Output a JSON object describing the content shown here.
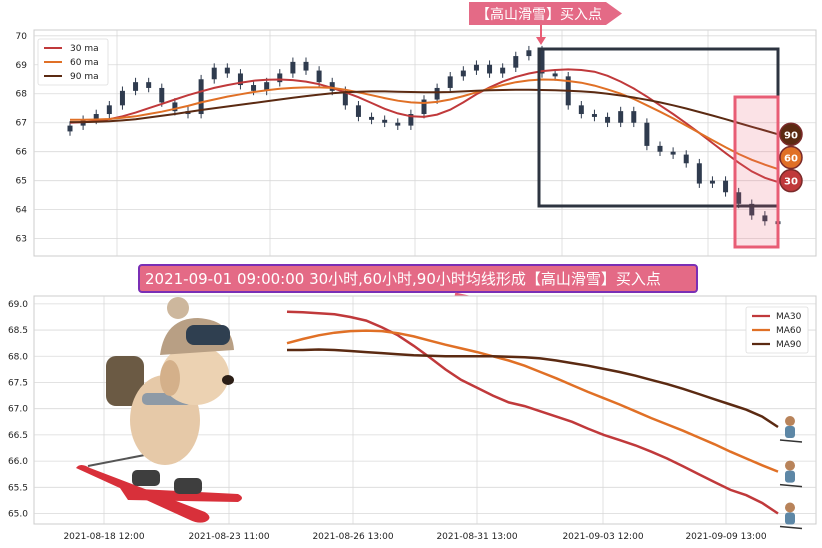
{
  "colors": {
    "ma30": "#c0393b",
    "ma60": "#e07026",
    "ma90": "#5b2a12",
    "candle": "#2f3b4e",
    "grid": "#d9d9d9",
    "highlight_box": "#2d3440",
    "alert_pink": "#e85d75",
    "banner_bg": "#e46a86",
    "banner_border": "#7a2fb5"
  },
  "top_banner": {
    "text": "【高山滑雪】买入点",
    "icon": "arrow-right-banner"
  },
  "mid_banner": {
    "text": "2021-09-01 09:00:00 30小时,60小时,90小时均线形成【高山滑雪】买入点"
  },
  "chart_data": [
    {
      "type": "candlestick",
      "ylim": [
        62.4,
        70.2
      ],
      "yticks": [
        "63",
        "64",
        "65",
        "66",
        "67",
        "68",
        "69",
        "70"
      ],
      "grid": true,
      "legend_position": "top-left",
      "legend": [
        "30 ma",
        "60 ma",
        "90 ma"
      ],
      "series": [
        {
          "name": "30 ma",
          "values": [
            67.0,
            67.02,
            67.05,
            67.12,
            67.22,
            67.35,
            67.5,
            67.65,
            67.8,
            67.95,
            68.08,
            68.2,
            68.3,
            68.38,
            68.45,
            68.48,
            68.49,
            68.47,
            68.42,
            68.33,
            68.2,
            68.05,
            67.88,
            67.68,
            67.48,
            67.32,
            67.22,
            67.2,
            67.28,
            67.45,
            67.7,
            67.98,
            68.22,
            68.42,
            68.58,
            68.7,
            68.78,
            68.82,
            68.84,
            68.82,
            68.76,
            68.62,
            68.42,
            68.18,
            67.9,
            67.6,
            67.3,
            66.98,
            66.65,
            66.3,
            65.95,
            65.62,
            65.32,
            65.1,
            64.95
          ]
        },
        {
          "name": "60 ma",
          "values": [
            67.1,
            67.1,
            67.11,
            67.13,
            67.17,
            67.22,
            67.3,
            67.38,
            67.48,
            67.58,
            67.7,
            67.8,
            67.9,
            67.98,
            68.06,
            68.12,
            68.17,
            68.2,
            68.22,
            68.22,
            68.2,
            68.14,
            68.05,
            67.95,
            67.85,
            67.76,
            67.7,
            67.68,
            67.72,
            67.8,
            67.92,
            68.05,
            68.18,
            68.3,
            68.4,
            68.46,
            68.49,
            68.48,
            68.44,
            68.38,
            68.28,
            68.15,
            68.0,
            67.82,
            67.6,
            67.38,
            67.15,
            66.9,
            66.65,
            66.4,
            66.15,
            65.92,
            65.72,
            65.55,
            65.4
          ]
        },
        {
          "name": "90 ma",
          "values": [
            67.02,
            67.02,
            67.03,
            67.05,
            67.08,
            67.12,
            67.18,
            67.24,
            67.3,
            67.37,
            67.44,
            67.5,
            67.56,
            67.62,
            67.68,
            67.74,
            67.8,
            67.86,
            67.92,
            67.97,
            68.02,
            68.05,
            68.07,
            68.08,
            68.08,
            68.07,
            68.06,
            68.05,
            68.05,
            68.06,
            68.08,
            68.1,
            68.12,
            68.13,
            68.14,
            68.14,
            68.13,
            68.12,
            68.1,
            68.08,
            68.05,
            68.0,
            67.94,
            67.87,
            67.79,
            67.7,
            67.6,
            67.49,
            67.37,
            67.25,
            67.12,
            66.99,
            66.86,
            66.73,
            66.6
          ]
        }
      ],
      "candles_close": [
        66.9,
        67.1,
        67.3,
        67.6,
        68.1,
        68.4,
        68.2,
        67.7,
        67.4,
        67.3,
        68.5,
        68.9,
        68.7,
        68.3,
        68.1,
        68.4,
        68.7,
        69.1,
        68.8,
        68.4,
        68.1,
        67.6,
        67.2,
        67.1,
        67.0,
        66.9,
        67.3,
        67.8,
        68.2,
        68.6,
        68.8,
        69.0,
        68.7,
        68.9,
        69.3,
        69.5,
        68.7,
        68.6,
        67.6,
        67.3,
        67.2,
        67.0,
        67.4,
        67.0,
        66.2,
        66.0,
        65.9,
        65.6,
        64.9,
        65.0,
        64.6,
        64.2,
        63.8,
        63.6,
        63.5
      ],
      "value_badges": [
        "90",
        "60",
        "30"
      ],
      "badge_values": [
        66.6,
        65.8,
        65.0
      ]
    },
    {
      "type": "line",
      "ylim": [
        64.8,
        69.15
      ],
      "yticks": [
        "65.0",
        "65.5",
        "66.0",
        "66.5",
        "67.0",
        "67.5",
        "68.0",
        "68.5",
        "69.0"
      ],
      "grid": true,
      "legend_position": "top-right",
      "legend": [
        "MA30",
        "MA60",
        "MA90"
      ],
      "xticks": [
        "2021-08-18 12:00",
        "2021-08-23 11:00",
        "2021-08-26 13:00",
        "2021-08-31 13:00",
        "2021-09-03 12:00",
        "2021-09-09 13:00"
      ],
      "series": [
        {
          "name": "MA30",
          "values": [
            68.85,
            68.84,
            68.82,
            68.8,
            68.75,
            68.68,
            68.55,
            68.4,
            68.2,
            67.98,
            67.75,
            67.55,
            67.4,
            67.25,
            67.12,
            67.05,
            66.95,
            66.85,
            66.75,
            66.62,
            66.5,
            66.4,
            66.3,
            66.18,
            66.05,
            65.9,
            65.75,
            65.6,
            65.45,
            65.35,
            65.2,
            65.0
          ]
        },
        {
          "name": "MA60",
          "values": [
            68.25,
            68.33,
            68.4,
            68.45,
            68.48,
            68.49,
            68.48,
            68.44,
            68.38,
            68.3,
            68.22,
            68.15,
            68.08,
            68.0,
            67.92,
            67.82,
            67.7,
            67.58,
            67.45,
            67.32,
            67.2,
            67.08,
            66.95,
            66.82,
            66.7,
            66.58,
            66.45,
            66.32,
            66.18,
            66.05,
            65.92,
            65.8
          ]
        },
        {
          "name": "MA90",
          "values": [
            68.12,
            68.12,
            68.13,
            68.12,
            68.1,
            68.08,
            68.06,
            68.04,
            68.02,
            68.01,
            68.0,
            68.0,
            68.0,
            68.0,
            67.99,
            67.98,
            67.96,
            67.92,
            67.87,
            67.82,
            67.76,
            67.7,
            67.63,
            67.55,
            67.47,
            67.38,
            67.28,
            67.18,
            67.08,
            66.98,
            66.85,
            66.65
          ]
        }
      ]
    }
  ]
}
